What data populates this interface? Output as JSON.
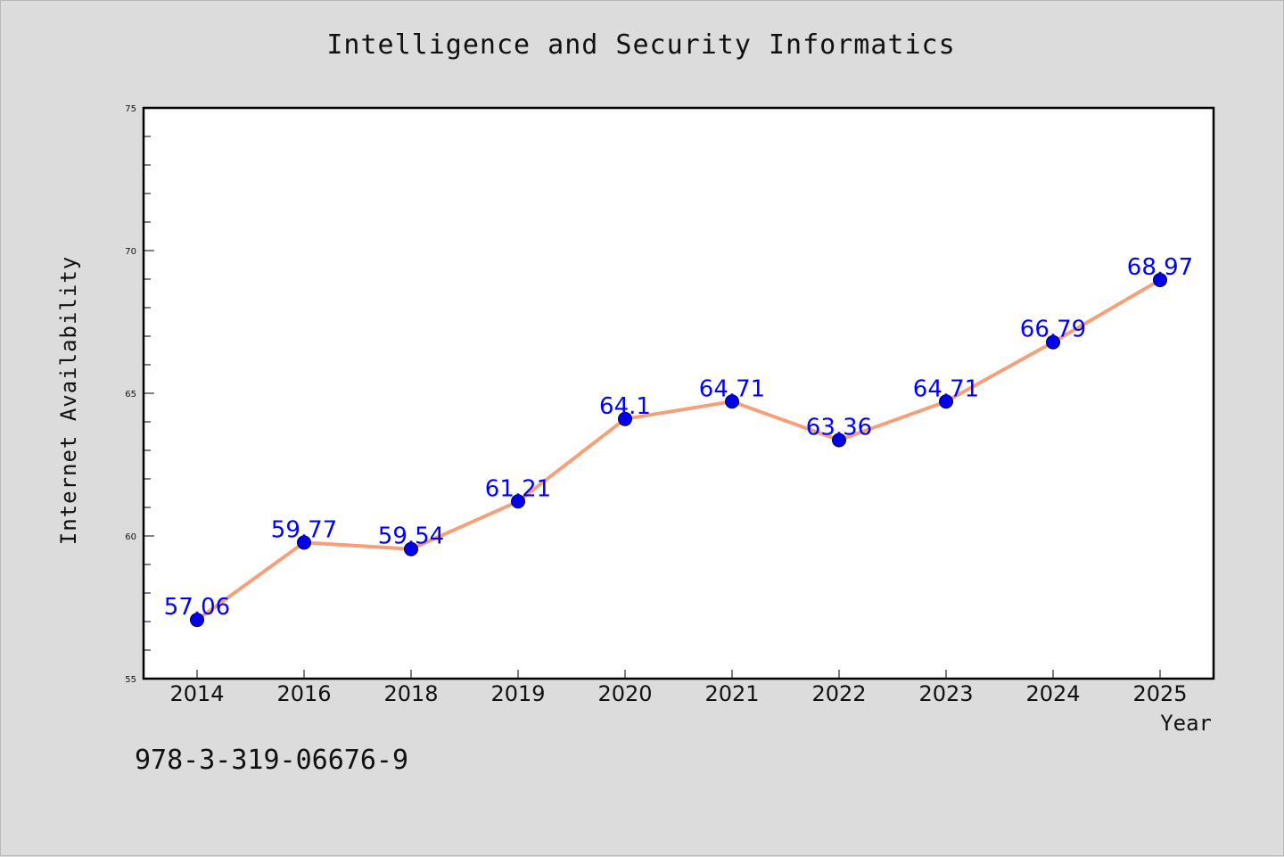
{
  "figure": {
    "title": "Intelligence and Security Informatics",
    "footnote": "978-3-319-06676-9"
  },
  "chart_data": {
    "type": "line",
    "title": "Intelligence and Security Informatics",
    "xlabel": "Year",
    "ylabel": "Internet Availability",
    "categories": [
      "2014",
      "2016",
      "2018",
      "2019",
      "2020",
      "2021",
      "2022",
      "2023",
      "2024",
      "2025"
    ],
    "series": [
      {
        "values": [
          57.06,
          59.77,
          59.54,
          61.21,
          64.1,
          64.71,
          63.36,
          64.71,
          66.79,
          68.97
        ],
        "labels": [
          "57.06",
          "59.77",
          "59.54",
          "61.21",
          "64.1",
          "64.71",
          "63.36",
          "64.71",
          "66.79",
          "68.97"
        ]
      }
    ],
    "ylim": [
      55,
      75
    ],
    "yticks": [
      "55",
      "60",
      "65",
      "70",
      "75"
    ],
    "grid": false,
    "legend": "none",
    "colors": {
      "line": "#f4a07a",
      "marker": "#0000ee",
      "marker_edge": "#000033",
      "label": "#0000ff",
      "plot_bg": "#ffffff"
    }
  }
}
